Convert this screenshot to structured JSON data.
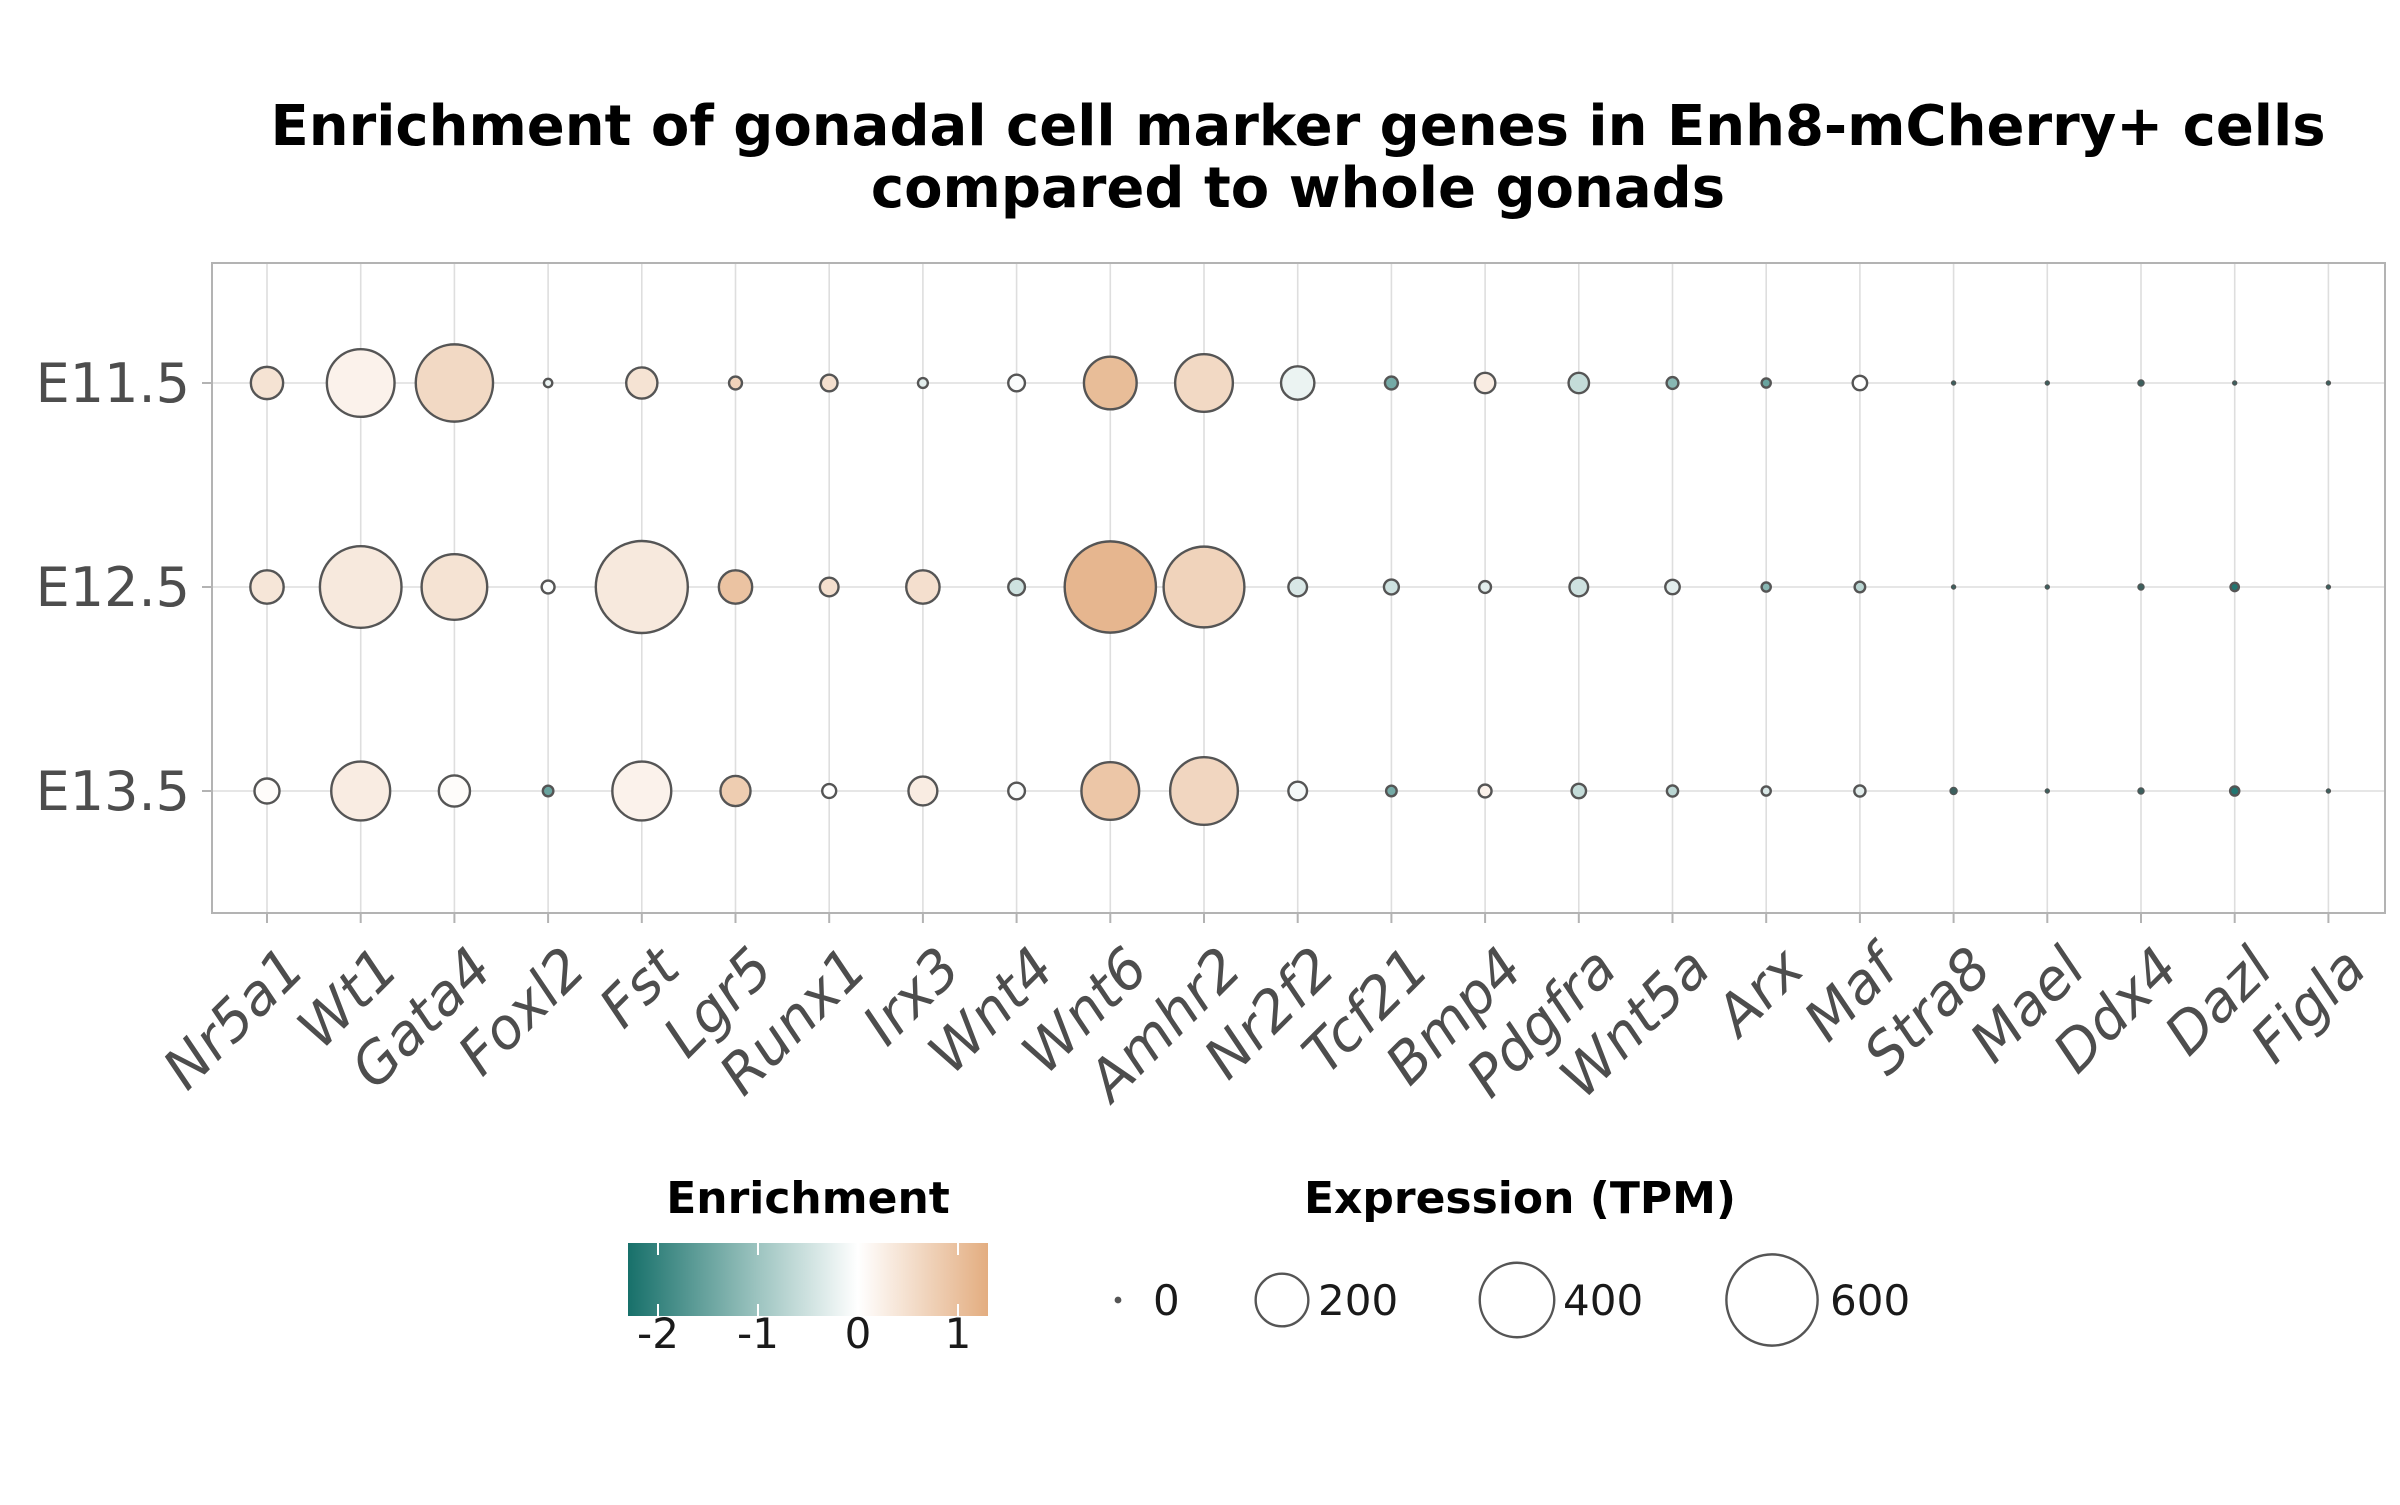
{
  "chart_data": {
    "type": "scatter",
    "title": [
      "Enrichment of gonadal cell marker genes in Enh8-mCherry+ cells",
      "compared to whole gonads"
    ],
    "xlabel": "",
    "ylabel": "",
    "genes": [
      "Nr5a1",
      "Wt1",
      "Gata4",
      "Foxl2",
      "Fst",
      "Lgr5",
      "Runx1",
      "Irx3",
      "Wnt4",
      "Wnt6",
      "Amhr2",
      "Nr2f2",
      "Tcf21",
      "Bmp4",
      "Pdgfra",
      "Wnt5a",
      "Arx",
      "Maf",
      "Stra8",
      "Mael",
      "Ddx4",
      "Dazl",
      "Figla"
    ],
    "stages": [
      "E11.5",
      "E12.5",
      "E13.5"
    ],
    "grid": true,
    "series": [
      {
        "stage": "E11.5",
        "expression_tpm": [
          75,
          330,
          430,
          5,
          70,
          12,
          20,
          7,
          20,
          200,
          240,
          80,
          12,
          30,
          30,
          10,
          6,
          15,
          1,
          1,
          3,
          1,
          1
        ],
        "enrichment": [
          0.45,
          0.2,
          0.6,
          -0.2,
          0.45,
          0.7,
          0.5,
          -0.3,
          -0.05,
          1.05,
          0.6,
          -0.2,
          -1.4,
          0.3,
          -0.6,
          -1.2,
          -1.5,
          0.0,
          -2.0,
          -2.0,
          -2.0,
          -2.0,
          -2.0
        ]
      },
      {
        "stage": "E12.5",
        "expression_tpm": [
          80,
          480,
          310,
          12,
          610,
          80,
          25,
          80,
          20,
          600,
          470,
          25,
          16,
          10,
          25,
          15,
          6,
          8,
          1,
          1,
          3,
          5,
          1
        ],
        "enrichment": [
          0.4,
          0.35,
          0.45,
          -0.05,
          0.35,
          0.95,
          0.5,
          0.5,
          -0.5,
          1.15,
          0.7,
          -0.4,
          -0.5,
          -0.3,
          -0.5,
          -0.3,
          -1.2,
          -0.7,
          -2.0,
          -2.0,
          -2.0,
          -2.2,
          -2.0
        ]
      },
      {
        "stage": "E13.5",
        "expression_tpm": [
          45,
          250,
          70,
          8,
          250,
          65,
          14,
          60,
          20,
          240,
          330,
          25,
          8,
          12,
          15,
          9,
          6,
          9,
          4,
          1,
          3,
          6,
          1
        ],
        "enrichment": [
          0.05,
          0.3,
          0.05,
          -1.5,
          0.2,
          0.8,
          0.0,
          0.3,
          -0.05,
          0.9,
          0.65,
          -0.1,
          -1.4,
          0.2,
          -0.6,
          -0.7,
          -0.4,
          -0.3,
          -2.2,
          -2.0,
          -2.0,
          -2.2,
          -2.0
        ]
      }
    ],
    "legends": {
      "color": {
        "title": "Enrichment",
        "ticks": [
          -2,
          -1,
          0,
          1
        ],
        "tick_labels": [
          "-2",
          "-1",
          "0",
          "1"
        ],
        "range": [
          -2.3,
          1.3
        ],
        "stops": [
          {
            "value": -2.3,
            "color": "#17706a"
          },
          {
            "value": -1.0,
            "color": "#9dc4c0"
          },
          {
            "value": 0.0,
            "color": "#ffffff"
          },
          {
            "value": 1.3,
            "color": "#e3ad80"
          }
        ]
      },
      "size": {
        "title": "Expression (TPM)",
        "breaks": [
          0,
          200,
          400,
          600
        ],
        "labels": [
          "0",
          "200",
          "400",
          "600"
        ]
      }
    },
    "colors": {
      "point_stroke": "#555555",
      "grid": "#dedede",
      "panel_border": "#b3b3b3"
    }
  }
}
